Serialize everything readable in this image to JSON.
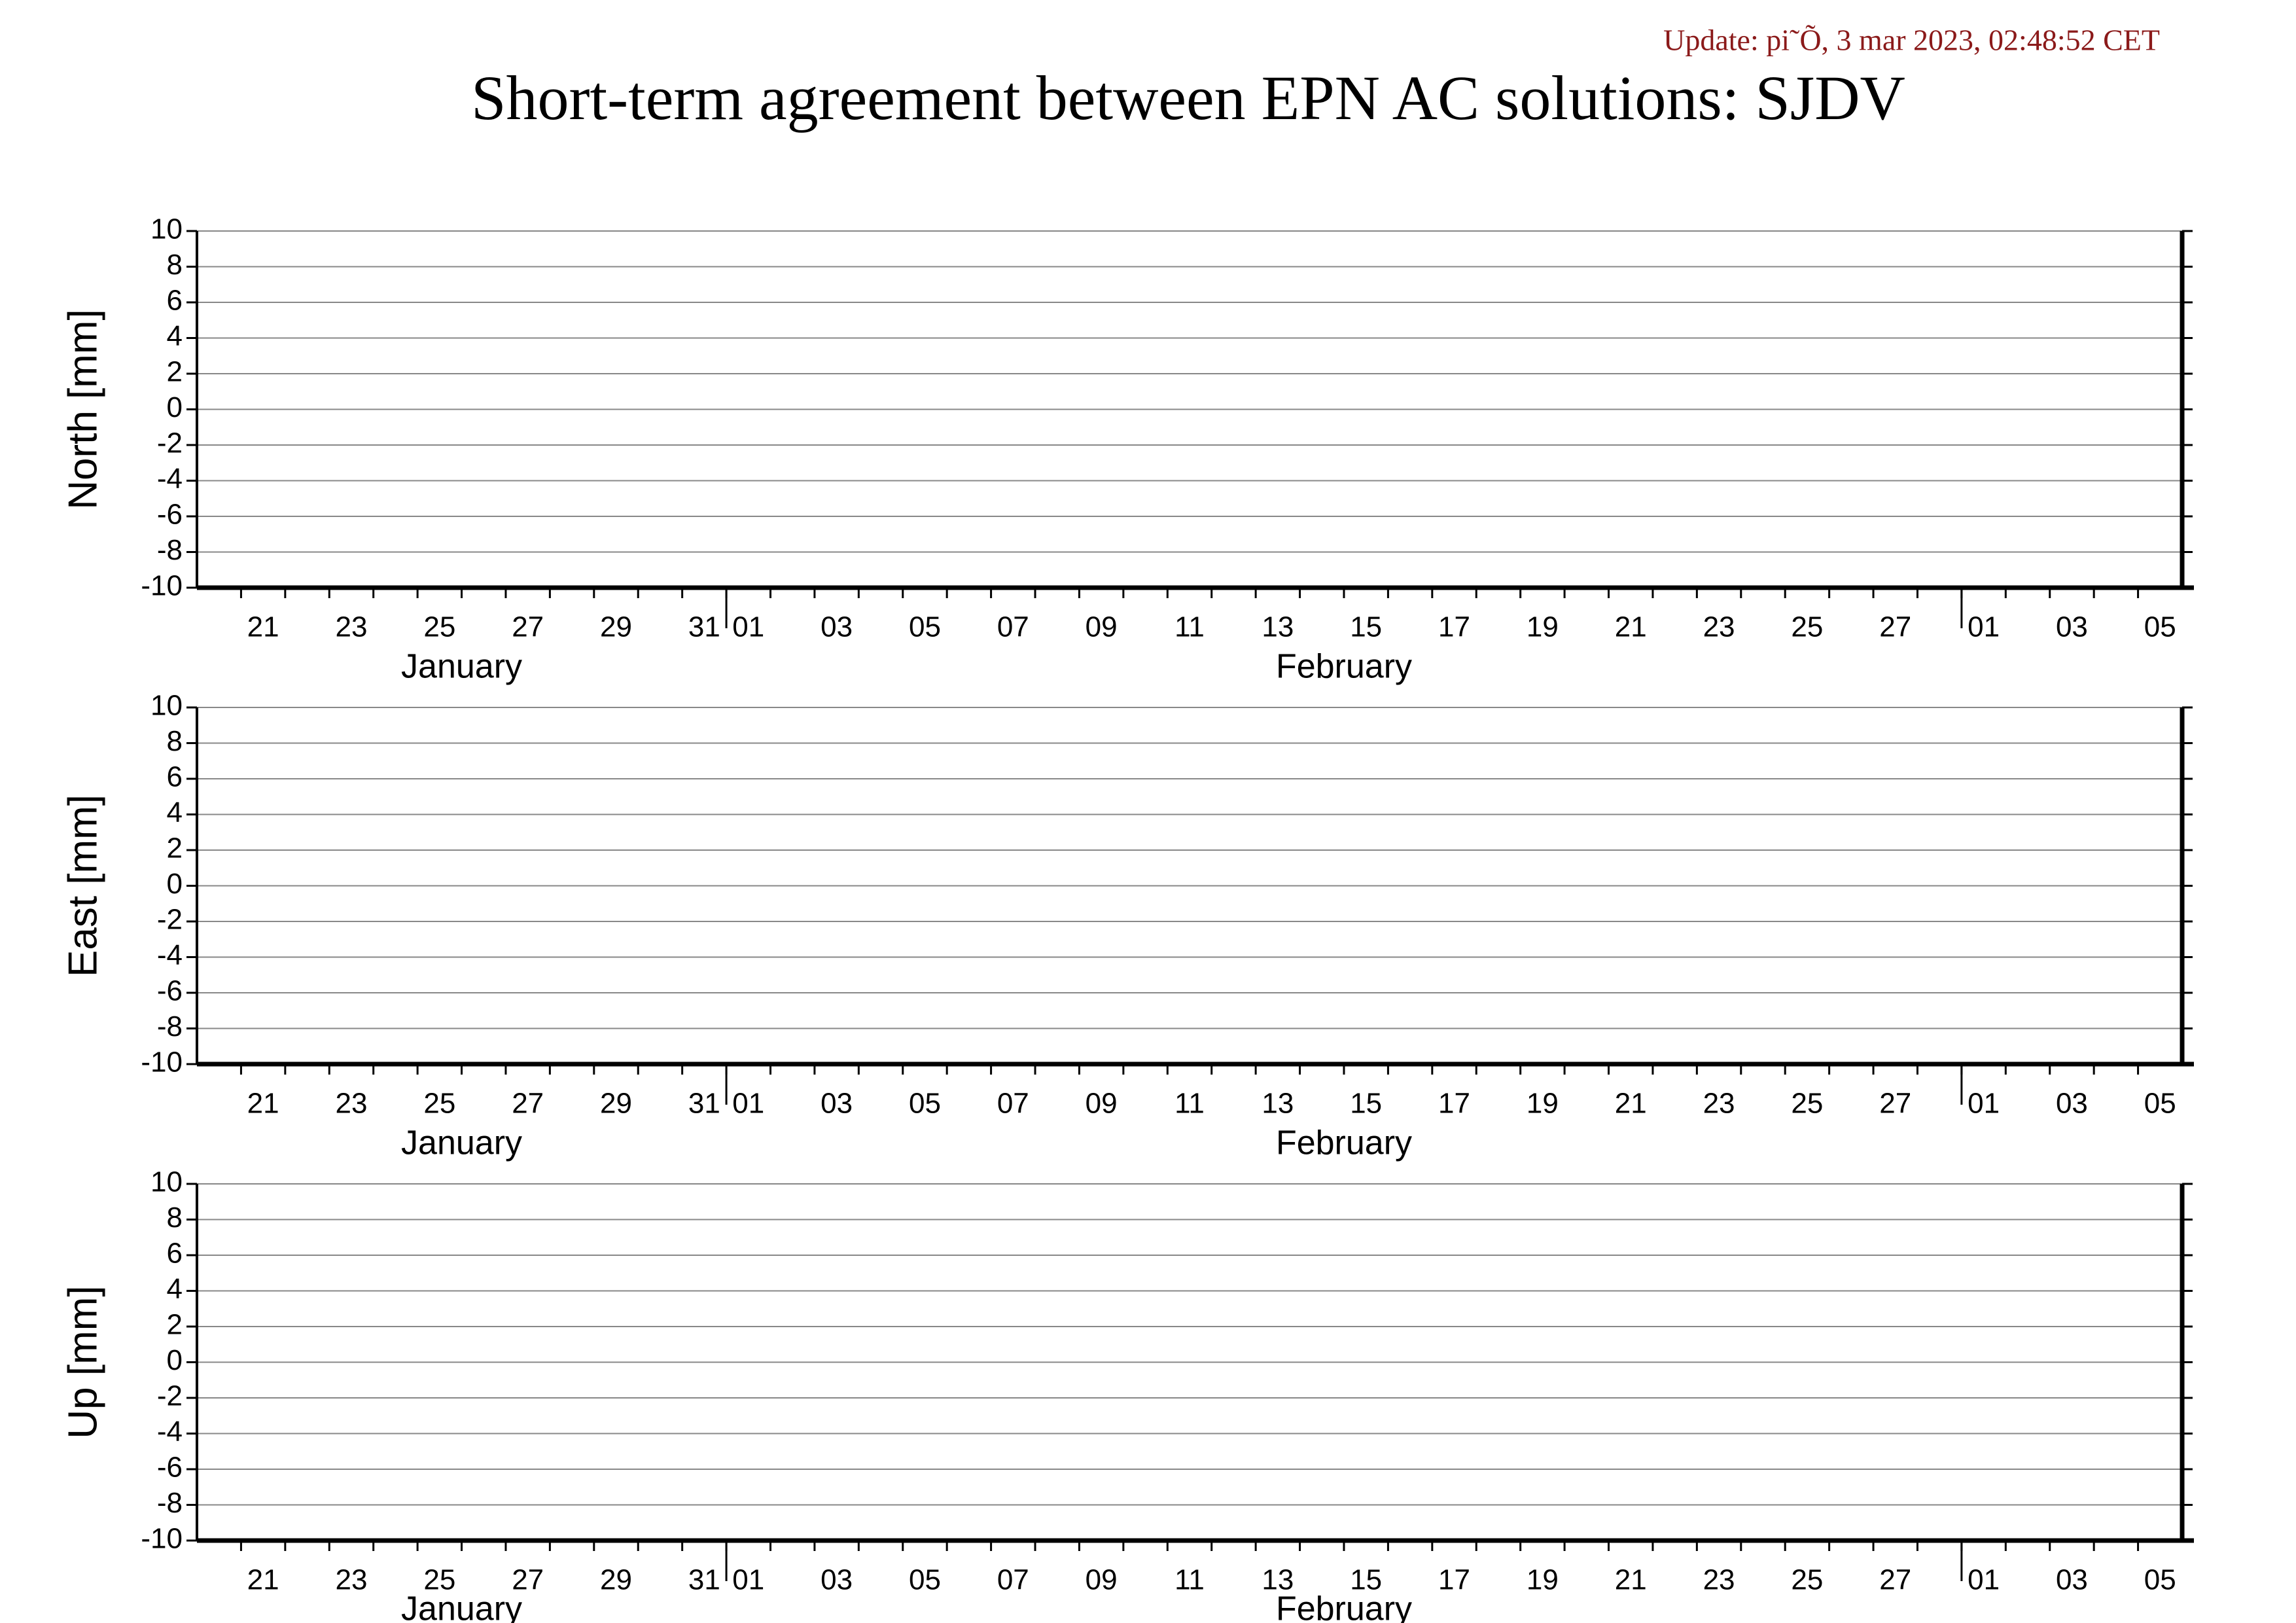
{
  "update": "Update: pi˜Õ, 3 mar 2023, 02:48:52 CET",
  "title": "Short-term agreement between EPN AC solutions: SJDV",
  "chart_data": [
    {
      "type": "line",
      "ylabel": "North [mm]",
      "ylim": [
        -10,
        10
      ],
      "yticks": [
        10,
        8,
        6,
        4,
        2,
        0,
        -2,
        -4,
        -6,
        -8,
        -10
      ],
      "grid": true,
      "series": [],
      "x_groups": [
        {
          "name": "January",
          "categories": [
            null,
            "21",
            null,
            "23",
            null,
            "25",
            null,
            "27",
            null,
            "29",
            null,
            "31"
          ]
        },
        {
          "name": "February",
          "categories": [
            "01",
            null,
            "03",
            null,
            "05",
            null,
            "07",
            null,
            "09",
            null,
            "11",
            null,
            "13",
            null,
            "15",
            null,
            "17",
            null,
            "19",
            null,
            "21",
            null,
            "23",
            null,
            "25",
            null,
            "27",
            null
          ]
        },
        {
          "name": null,
          "categories": [
            "01",
            null,
            "03",
            null,
            "05"
          ]
        }
      ]
    },
    {
      "type": "line",
      "ylabel": "East [mm]",
      "ylim": [
        -10,
        10
      ],
      "yticks": [
        10,
        8,
        6,
        4,
        2,
        0,
        -2,
        -4,
        -6,
        -8,
        -10
      ],
      "grid": true,
      "series": [],
      "x_groups": [
        {
          "name": "January",
          "categories": [
            null,
            "21",
            null,
            "23",
            null,
            "25",
            null,
            "27",
            null,
            "29",
            null,
            "31"
          ]
        },
        {
          "name": "February",
          "categories": [
            "01",
            null,
            "03",
            null,
            "05",
            null,
            "07",
            null,
            "09",
            null,
            "11",
            null,
            "13",
            null,
            "15",
            null,
            "17",
            null,
            "19",
            null,
            "21",
            null,
            "23",
            null,
            "25",
            null,
            "27",
            null
          ]
        },
        {
          "name": null,
          "categories": [
            "01",
            null,
            "03",
            null,
            "05"
          ]
        }
      ]
    },
    {
      "type": "line",
      "ylabel": "Up [mm]",
      "ylim": [
        -10,
        10
      ],
      "yticks": [
        10,
        8,
        6,
        4,
        2,
        0,
        -2,
        -4,
        -6,
        -8,
        -10
      ],
      "grid": true,
      "series": [],
      "x_groups": [
        {
          "name": "January",
          "categories": [
            null,
            "21",
            null,
            "23",
            null,
            "25",
            null,
            "27",
            null,
            "29",
            null,
            "31"
          ]
        },
        {
          "name": "February",
          "categories": [
            "01",
            null,
            "03",
            null,
            "05",
            null,
            "07",
            null,
            "09",
            null,
            "11",
            null,
            "13",
            null,
            "15",
            null,
            "17",
            null,
            "19",
            null,
            "21",
            null,
            "23",
            null,
            "25",
            null,
            "27",
            null
          ]
        },
        {
          "name": null,
          "categories": [
            "01",
            null,
            "03",
            null,
            "05"
          ]
        }
      ]
    }
  ]
}
